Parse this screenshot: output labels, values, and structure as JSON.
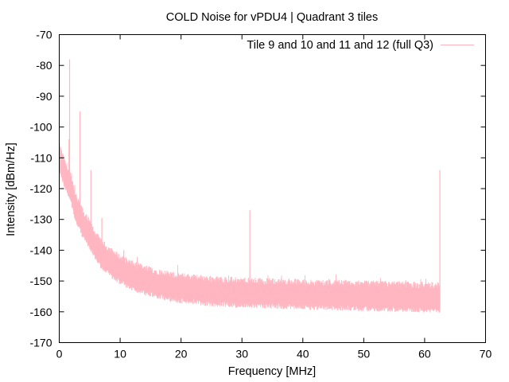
{
  "chart_data": {
    "type": "line",
    "title": "COLD Noise for vPDU4 | Quadrant 3 tiles",
    "xlabel": "Frequency [MHz]",
    "ylabel": "Intensity [dBm/Hz]",
    "xlim": [
      0,
      70
    ],
    "ylim": [
      -170,
      -70
    ],
    "xticks": [
      0,
      10,
      20,
      30,
      40,
      50,
      60,
      70
    ],
    "yticks": [
      -170,
      -160,
      -150,
      -140,
      -130,
      -120,
      -110,
      -100,
      -90,
      -80,
      -70
    ],
    "grid": false,
    "legend_position": "top-right",
    "series": [
      {
        "name": "Tile 9 and 10 and 11 and 12 (full Q3)",
        "color": "#ffb6c1",
        "x_range": [
          0,
          62.5
        ],
        "noise_floor": [
          [
            0,
            -110
          ],
          [
            0.5,
            -113
          ],
          [
            1,
            -116
          ],
          [
            1.5,
            -118
          ],
          [
            2,
            -121
          ],
          [
            2.5,
            -125
          ],
          [
            3,
            -128
          ],
          [
            3.5,
            -130
          ],
          [
            4,
            -132
          ],
          [
            5,
            -135
          ],
          [
            6,
            -139
          ],
          [
            7,
            -141.5
          ],
          [
            8,
            -143.5
          ],
          [
            9,
            -145
          ],
          [
            10,
            -146.5
          ],
          [
            11,
            -147.5
          ],
          [
            12,
            -148.5
          ],
          [
            14,
            -150
          ],
          [
            16,
            -151
          ],
          [
            18,
            -152
          ],
          [
            20,
            -152.5
          ],
          [
            25,
            -153.5
          ],
          [
            30,
            -154
          ],
          [
            40,
            -154.5
          ],
          [
            50,
            -155
          ],
          [
            62.5,
            -155.5
          ]
        ],
        "noise_band_dB": 6,
        "spikes": [
          [
            1.7,
            -78
          ],
          [
            1.6,
            -104
          ],
          [
            3.4,
            -95
          ],
          [
            5.2,
            -114
          ],
          [
            7.0,
            -129.5
          ],
          [
            10.6,
            -140
          ],
          [
            31.3,
            -127
          ],
          [
            33.5,
            -150
          ],
          [
            46.5,
            -151
          ],
          [
            52.8,
            -150
          ],
          [
            55.5,
            -150.5
          ],
          [
            56.9,
            -149.8
          ],
          [
            60.2,
            -150
          ],
          [
            62.5,
            -114
          ]
        ]
      }
    ]
  }
}
